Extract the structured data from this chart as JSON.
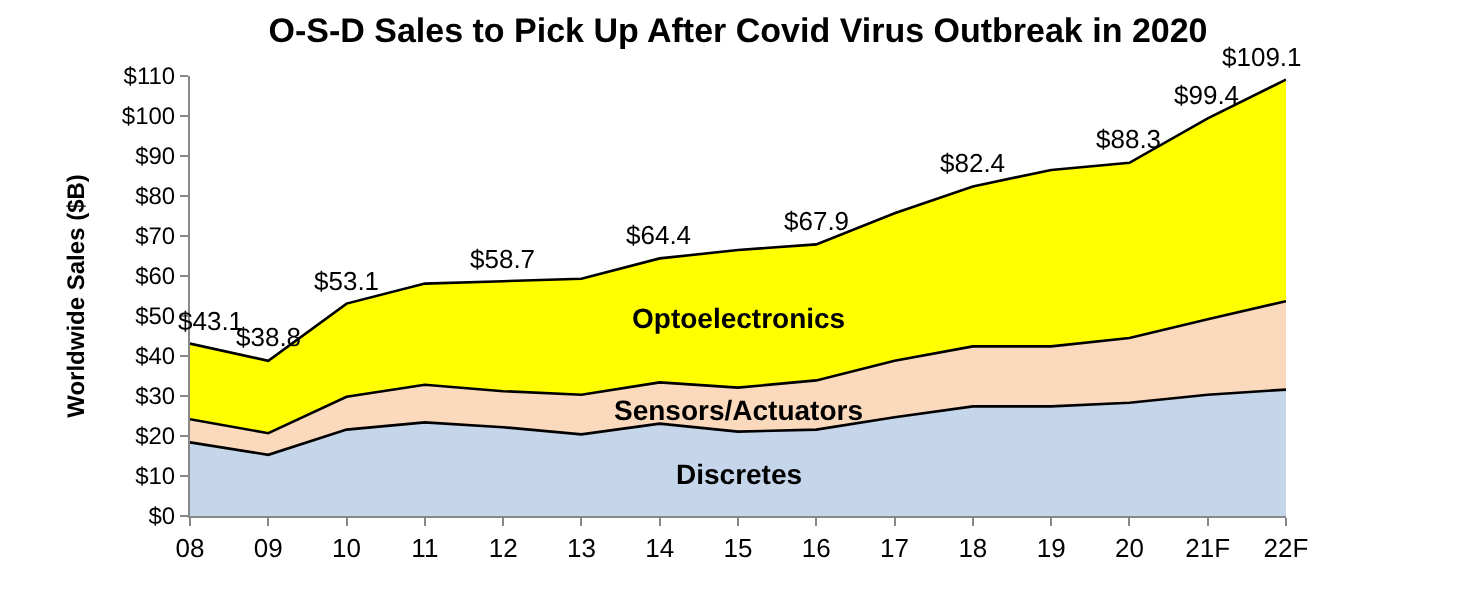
{
  "chart_data": {
    "type": "area",
    "stacked": true,
    "title": "O-S-D Sales to Pick Up After Covid Virus Outbreak in 2020",
    "ylabel": "Worldwide Sales ($B)",
    "categories": [
      "08",
      "09",
      "10",
      "11",
      "12",
      "13",
      "14",
      "15",
      "16",
      "17",
      "18",
      "19",
      "20",
      "21F",
      "22F"
    ],
    "series": [
      {
        "name": "Discretes",
        "color": "#c5d5ea",
        "values": [
          18.4,
          15.3,
          21.6,
          23.4,
          22.2,
          20.4,
          23.1,
          21.1,
          21.6,
          24.7,
          27.4,
          27.4,
          28.3,
          30.3,
          31.6
        ]
      },
      {
        "name": "Sensors/Actuators",
        "color": "#fbd9bd",
        "values": [
          5.8,
          5.4,
          8.2,
          9.4,
          9.0,
          9.9,
          10.3,
          11.0,
          12.3,
          14.1,
          15.0,
          15.0,
          16.2,
          18.9,
          22.1
        ]
      },
      {
        "name": "Optoelectronics",
        "color": "#ffff00",
        "values": [
          18.9,
          18.1,
          23.3,
          25.3,
          27.5,
          29.0,
          31.0,
          34.4,
          34.0,
          36.9,
          40.0,
          44.1,
          43.8,
          50.2,
          55.4
        ]
      }
    ],
    "totals": [
      "$43.1",
      "$38.8",
      "$53.1",
      null,
      "$58.7",
      null,
      "$64.4",
      null,
      "$67.9",
      null,
      "$82.4",
      null,
      "$88.3",
      "$99.4",
      "$109.1"
    ],
    "ylim": [
      0,
      110
    ],
    "yticks": [
      {
        "value": 0,
        "label": "$0"
      },
      {
        "value": 10,
        "label": "$10"
      },
      {
        "value": 20,
        "label": "$20"
      },
      {
        "value": 30,
        "label": "$30"
      },
      {
        "value": 40,
        "label": "$40"
      },
      {
        "value": 50,
        "label": "$50"
      },
      {
        "value": 60,
        "label": "$60"
      },
      {
        "value": 70,
        "label": "$70"
      },
      {
        "value": 80,
        "label": "$80"
      },
      {
        "value": 90,
        "label": "$90"
      },
      {
        "value": 100,
        "label": "$100"
      },
      {
        "value": 110,
        "label": "$110"
      }
    ],
    "legend": false
  }
}
